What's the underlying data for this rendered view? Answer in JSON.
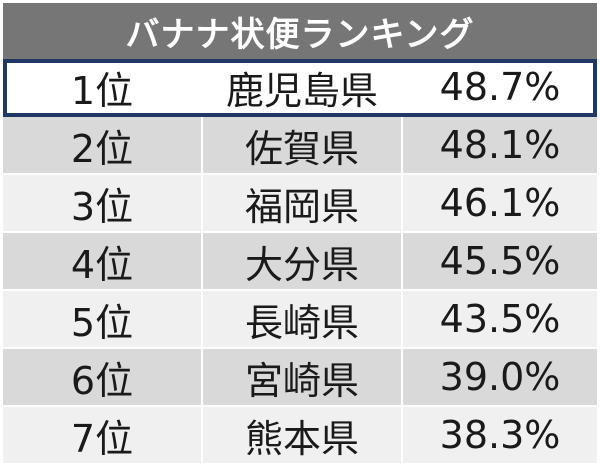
{
  "chart_data": {
    "type": "table",
    "title": "バナナ状便ランキング",
    "rows": [
      {
        "rank": "1位",
        "prefecture": "鹿児島県",
        "value_label": "48.7%",
        "value": 48.7
      },
      {
        "rank": "2位",
        "prefecture": "佐賀県",
        "value_label": "48.1%",
        "value": 48.1
      },
      {
        "rank": "3位",
        "prefecture": "福岡県",
        "value_label": "46.1%",
        "value": 46.1
      },
      {
        "rank": "4位",
        "prefecture": "大分県",
        "value_label": "45.5%",
        "value": 45.5
      },
      {
        "rank": "5位",
        "prefecture": "長崎県",
        "value_label": "43.5%",
        "value": 43.5
      },
      {
        "rank": "6位",
        "prefecture": "宮崎県",
        "value_label": "39.0%",
        "value": 39.0
      },
      {
        "rank": "7位",
        "prefecture": "熊本県",
        "value_label": "38.3%",
        "value": 38.3
      }
    ],
    "highlighted_row": 0,
    "colors": {
      "title_background": "#767676",
      "title_text": "#ffffff",
      "highlight_border": "#1f3864",
      "row_light": "#f0f0f0",
      "row_dark": "#d9d9d9"
    }
  }
}
